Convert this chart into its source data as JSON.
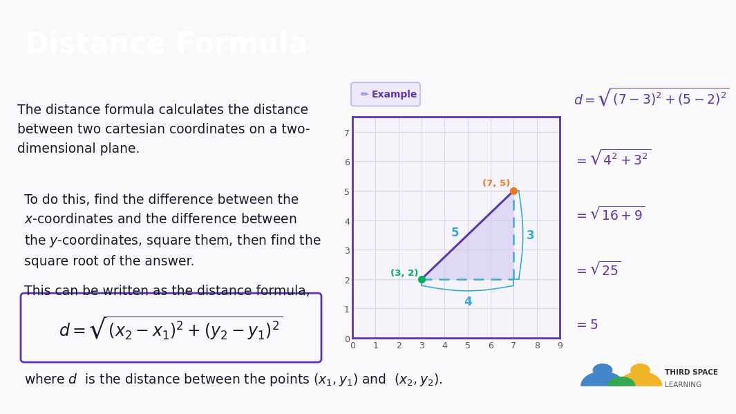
{
  "title": "Distance Formula",
  "title_bg_color": "#5e35b1",
  "title_text_color": "#ffffff",
  "bg_color": "#f9f9fb",
  "body_text_color": "#1a1a2e",
  "purple_color": "#5e35b1",
  "para1": "The distance formula calculates the distance\nbetween two cartesian coordinates on a two-\ndimensional plane.",
  "para2": "To do this, find the difference between the\n$x$-coordinates and the difference between\nthe $y$-coordinates, square them, then find the\nsquare root of the answer.",
  "para3": "This can be written as the distance formula,",
  "formula": "$d = \\sqrt{(x_2 - x_1)^2 + (y_2 - y_1)^2}$",
  "where_text": "where $d$  is the distance between the points $(x_1, y_1)$ and  $(x_2, y_2)$.",
  "example_label": "Example",
  "point1": [
    3,
    2
  ],
  "point2": [
    7,
    5
  ],
  "point1_color": "#00b05e",
  "point2_color": "#f07820",
  "dashed_color": "#3aabcf",
  "triangle_fill": "#cec5f0",
  "line_color": "#5e35b1",
  "label_5": "5",
  "label_4": "4",
  "label_3": "3",
  "eq1": "$d = \\sqrt{(7-3)^2 + (5-2)^2}$",
  "eq2": "$= \\sqrt{4^2 + 3^2}$",
  "eq3": "$= \\sqrt{16 + 9}$",
  "eq4": "$= \\sqrt{25}$",
  "eq5": "$= 5$",
  "graph_bg": "#f5f4fb",
  "graph_border": "#5e35b1",
  "grid_color": "#d8d5e8",
  "badge_bg": "#ede8fa",
  "badge_border": "#c5b8ef",
  "badge_icon_color": "#7c5fbf",
  "badge_text_color": "#5e35b1"
}
